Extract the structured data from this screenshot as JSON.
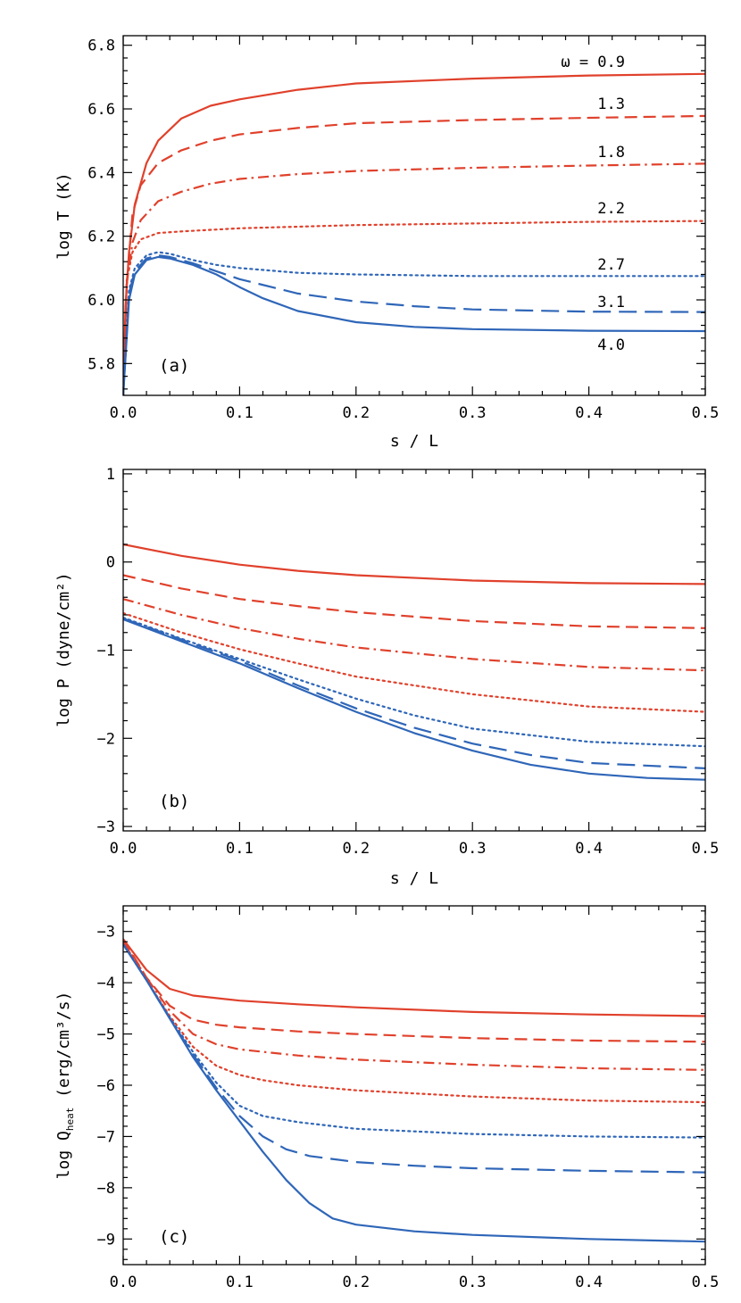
{
  "colors": {
    "red": "#e0412c",
    "blue": "#2f66b8"
  },
  "chart_data": [
    {
      "type": "line",
      "panel_label": "(a)",
      "xlabel": "s / L",
      "ylabel": "log T  (K)",
      "xlim": [
        0,
        0.5
      ],
      "ylim": [
        5.7,
        6.83
      ],
      "x_ticks": [
        "0.0",
        "0.1",
        "0.2",
        "0.3",
        "0.4",
        "0.5"
      ],
      "y_ticks": [
        {
          "v": 5.8,
          "label": "5.8"
        },
        {
          "v": 6.0,
          "label": "6.0"
        },
        {
          "v": 6.2,
          "label": "6.2"
        },
        {
          "v": 6.4,
          "label": "6.4"
        },
        {
          "v": 6.6,
          "label": "6.6"
        },
        {
          "v": 6.8,
          "label": "6.8"
        }
      ],
      "annotations": [
        "ω = 0.9",
        "1.3",
        "1.8",
        "2.2",
        "2.7",
        "3.1",
        "4.0"
      ],
      "series": [
        {
          "color": "red",
          "dash": "solid",
          "x": [
            0,
            0.002,
            0.005,
            0.01,
            0.02,
            0.03,
            0.05,
            0.075,
            0.1,
            0.15,
            0.2,
            0.3,
            0.4,
            0.5
          ],
          "y": [
            5.7,
            5.98,
            6.15,
            6.3,
            6.43,
            6.5,
            6.57,
            6.61,
            6.63,
            6.66,
            6.68,
            6.695,
            6.705,
            6.71
          ]
        },
        {
          "color": "red",
          "dash": "dashed",
          "x": [
            0,
            0.003,
            0.008,
            0.015,
            0.03,
            0.05,
            0.075,
            0.1,
            0.15,
            0.2,
            0.3,
            0.4,
            0.5
          ],
          "y": [
            5.7,
            6.05,
            6.27,
            6.36,
            6.43,
            6.47,
            6.5,
            6.52,
            6.54,
            6.555,
            6.565,
            6.572,
            6.578
          ]
        },
        {
          "color": "red",
          "dash": "dashdot",
          "x": [
            0,
            0.003,
            0.008,
            0.015,
            0.03,
            0.05,
            0.075,
            0.1,
            0.15,
            0.2,
            0.3,
            0.4,
            0.5
          ],
          "y": [
            5.7,
            6.05,
            6.18,
            6.25,
            6.31,
            6.34,
            6.365,
            6.38,
            6.395,
            6.405,
            6.415,
            6.422,
            6.428
          ]
        },
        {
          "color": "red",
          "dash": "dotted",
          "x": [
            0,
            0.003,
            0.008,
            0.015,
            0.03,
            0.05,
            0.1,
            0.15,
            0.2,
            0.3,
            0.4,
            0.5
          ],
          "y": [
            5.7,
            6.06,
            6.15,
            6.19,
            6.21,
            6.215,
            6.225,
            6.23,
            6.235,
            6.24,
            6.245,
            6.248
          ]
        },
        {
          "color": "blue",
          "dash": "dotted",
          "x": [
            0,
            0.005,
            0.01,
            0.02,
            0.03,
            0.04,
            0.06,
            0.08,
            0.1,
            0.15,
            0.2,
            0.3,
            0.4,
            0.5
          ],
          "y": [
            5.7,
            6.03,
            6.1,
            6.14,
            6.15,
            6.145,
            6.125,
            6.11,
            6.1,
            6.085,
            6.08,
            6.075,
            6.075,
            6.075
          ]
        },
        {
          "color": "blue",
          "dash": "longdash",
          "x": [
            0,
            0.005,
            0.01,
            0.02,
            0.03,
            0.04,
            0.06,
            0.08,
            0.1,
            0.15,
            0.2,
            0.25,
            0.3,
            0.4,
            0.5
          ],
          "y": [
            5.7,
            6.02,
            6.09,
            6.13,
            6.14,
            6.135,
            6.115,
            6.09,
            6.065,
            6.02,
            5.995,
            5.98,
            5.97,
            5.963,
            5.962
          ]
        },
        {
          "color": "blue",
          "dash": "solid",
          "x": [
            0,
            0.005,
            0.01,
            0.02,
            0.03,
            0.04,
            0.06,
            0.08,
            0.1,
            0.12,
            0.15,
            0.2,
            0.25,
            0.3,
            0.4,
            0.5
          ],
          "y": [
            5.7,
            6.0,
            6.08,
            6.125,
            6.135,
            6.13,
            6.11,
            6.08,
            6.04,
            6.005,
            5.965,
            5.93,
            5.915,
            5.908,
            5.903,
            5.902
          ]
        }
      ]
    },
    {
      "type": "line",
      "panel_label": "(b)",
      "xlabel": "s / L",
      "ylabel": "log P  (dyne/cm²)",
      "xlim": [
        0,
        0.5
      ],
      "ylim": [
        -3.05,
        1.05
      ],
      "x_ticks": [
        "0.0",
        "0.1",
        "0.2",
        "0.3",
        "0.4",
        "0.5"
      ],
      "y_ticks": [
        {
          "v": -3,
          "label": "−3"
        },
        {
          "v": -2,
          "label": "−2"
        },
        {
          "v": -1,
          "label": "−1"
        },
        {
          "v": 0,
          "label": "0"
        },
        {
          "v": 1,
          "label": "1"
        }
      ],
      "series": [
        {
          "color": "red",
          "dash": "solid",
          "x": [
            0,
            0.05,
            0.1,
            0.15,
            0.2,
            0.3,
            0.4,
            0.5
          ],
          "y": [
            0.2,
            0.07,
            -0.03,
            -0.1,
            -0.15,
            -0.21,
            -0.24,
            -0.25
          ]
        },
        {
          "color": "red",
          "dash": "dashed",
          "x": [
            0,
            0.05,
            0.1,
            0.15,
            0.2,
            0.3,
            0.4,
            0.5
          ],
          "y": [
            -0.15,
            -0.3,
            -0.42,
            -0.5,
            -0.57,
            -0.67,
            -0.73,
            -0.75
          ]
        },
        {
          "color": "red",
          "dash": "dashdot",
          "x": [
            0,
            0.05,
            0.1,
            0.15,
            0.2,
            0.3,
            0.4,
            0.5
          ],
          "y": [
            -0.42,
            -0.6,
            -0.75,
            -0.87,
            -0.97,
            -1.1,
            -1.19,
            -1.23
          ]
        },
        {
          "color": "red",
          "dash": "dotted",
          "x": [
            0,
            0.05,
            0.1,
            0.15,
            0.2,
            0.3,
            0.4,
            0.5
          ],
          "y": [
            -0.58,
            -0.8,
            -0.99,
            -1.15,
            -1.3,
            -1.5,
            -1.64,
            -1.7
          ]
        },
        {
          "color": "blue",
          "dash": "dotted",
          "x": [
            0,
            0.05,
            0.1,
            0.15,
            0.2,
            0.25,
            0.3,
            0.4,
            0.5
          ],
          "y": [
            -0.63,
            -0.87,
            -1.1,
            -1.33,
            -1.55,
            -1.74,
            -1.89,
            -2.04,
            -2.09
          ]
        },
        {
          "color": "blue",
          "dash": "longdash",
          "x": [
            0,
            0.05,
            0.1,
            0.15,
            0.2,
            0.25,
            0.3,
            0.35,
            0.4,
            0.5
          ],
          "y": [
            -0.64,
            -0.88,
            -1.12,
            -1.4,
            -1.66,
            -1.88,
            -2.06,
            -2.19,
            -2.28,
            -2.34
          ]
        },
        {
          "color": "blue",
          "dash": "solid",
          "x": [
            0,
            0.05,
            0.1,
            0.15,
            0.2,
            0.25,
            0.3,
            0.35,
            0.4,
            0.45,
            0.5
          ],
          "y": [
            -0.65,
            -0.9,
            -1.15,
            -1.43,
            -1.7,
            -1.94,
            -2.14,
            -2.3,
            -2.4,
            -2.45,
            -2.47
          ]
        }
      ]
    },
    {
      "type": "line",
      "panel_label": "(c)",
      "xlabel": "",
      "ylabel_prefix": "log Q",
      "ylabel_sub": "heat",
      "ylabel_suffix": "  (erg/cm³/s)",
      "xlim": [
        0,
        0.5
      ],
      "ylim": [
        -9.5,
        -2.5
      ],
      "x_ticks": [
        "0.0",
        "0.1",
        "0.2",
        "0.3",
        "0.4",
        "0.5"
      ],
      "y_ticks": [
        {
          "v": -9,
          "label": "−9"
        },
        {
          "v": -8,
          "label": "−8"
        },
        {
          "v": -7,
          "label": "−7"
        },
        {
          "v": -6,
          "label": "−6"
        },
        {
          "v": -5,
          "label": "−5"
        },
        {
          "v": -4,
          "label": "−4"
        },
        {
          "v": -3,
          "label": "−3"
        }
      ],
      "series": [
        {
          "color": "red",
          "dash": "solid",
          "x": [
            0,
            0.02,
            0.04,
            0.06,
            0.1,
            0.15,
            0.2,
            0.3,
            0.4,
            0.5
          ],
          "y": [
            -3.15,
            -3.75,
            -4.12,
            -4.25,
            -4.35,
            -4.42,
            -4.48,
            -4.57,
            -4.62,
            -4.65
          ]
        },
        {
          "color": "red",
          "dash": "dashed",
          "x": [
            0,
            0.02,
            0.04,
            0.06,
            0.08,
            0.1,
            0.15,
            0.2,
            0.3,
            0.4,
            0.5
          ],
          "y": [
            -3.15,
            -3.9,
            -4.45,
            -4.72,
            -4.82,
            -4.87,
            -4.95,
            -5.0,
            -5.08,
            -5.13,
            -5.15
          ]
        },
        {
          "color": "red",
          "dash": "dashdot",
          "x": [
            0,
            0.02,
            0.04,
            0.06,
            0.08,
            0.1,
            0.15,
            0.2,
            0.3,
            0.4,
            0.5
          ],
          "y": [
            -3.2,
            -3.9,
            -4.55,
            -5.0,
            -5.2,
            -5.3,
            -5.42,
            -5.5,
            -5.6,
            -5.67,
            -5.7
          ]
        },
        {
          "color": "red",
          "dash": "dotted",
          "x": [
            0,
            0.02,
            0.04,
            0.06,
            0.08,
            0.1,
            0.12,
            0.15,
            0.2,
            0.3,
            0.4,
            0.5
          ],
          "y": [
            -3.2,
            -3.95,
            -4.65,
            -5.25,
            -5.62,
            -5.8,
            -5.9,
            -6.0,
            -6.1,
            -6.22,
            -6.3,
            -6.33
          ]
        },
        {
          "color": "blue",
          "dash": "dotted",
          "x": [
            0,
            0.02,
            0.04,
            0.06,
            0.08,
            0.1,
            0.12,
            0.15,
            0.2,
            0.3,
            0.4,
            0.5
          ],
          "y": [
            -3.25,
            -3.95,
            -4.68,
            -5.35,
            -5.95,
            -6.4,
            -6.6,
            -6.72,
            -6.85,
            -6.95,
            -7.0,
            -7.02
          ]
        },
        {
          "color": "blue",
          "dash": "longdash",
          "x": [
            0,
            0.02,
            0.04,
            0.06,
            0.08,
            0.1,
            0.12,
            0.14,
            0.16,
            0.2,
            0.25,
            0.3,
            0.4,
            0.5
          ],
          "y": [
            -3.25,
            -3.95,
            -4.7,
            -5.4,
            -6.05,
            -6.6,
            -7.0,
            -7.25,
            -7.38,
            -7.5,
            -7.57,
            -7.62,
            -7.67,
            -7.7
          ]
        },
        {
          "color": "blue",
          "dash": "solid",
          "x": [
            0,
            0.02,
            0.04,
            0.06,
            0.08,
            0.1,
            0.12,
            0.14,
            0.16,
            0.18,
            0.2,
            0.25,
            0.3,
            0.4,
            0.5
          ],
          "y": [
            -3.25,
            -3.95,
            -4.7,
            -5.45,
            -6.1,
            -6.7,
            -7.3,
            -7.85,
            -8.3,
            -8.6,
            -8.72,
            -8.85,
            -8.92,
            -9.0,
            -9.05
          ]
        }
      ]
    }
  ]
}
